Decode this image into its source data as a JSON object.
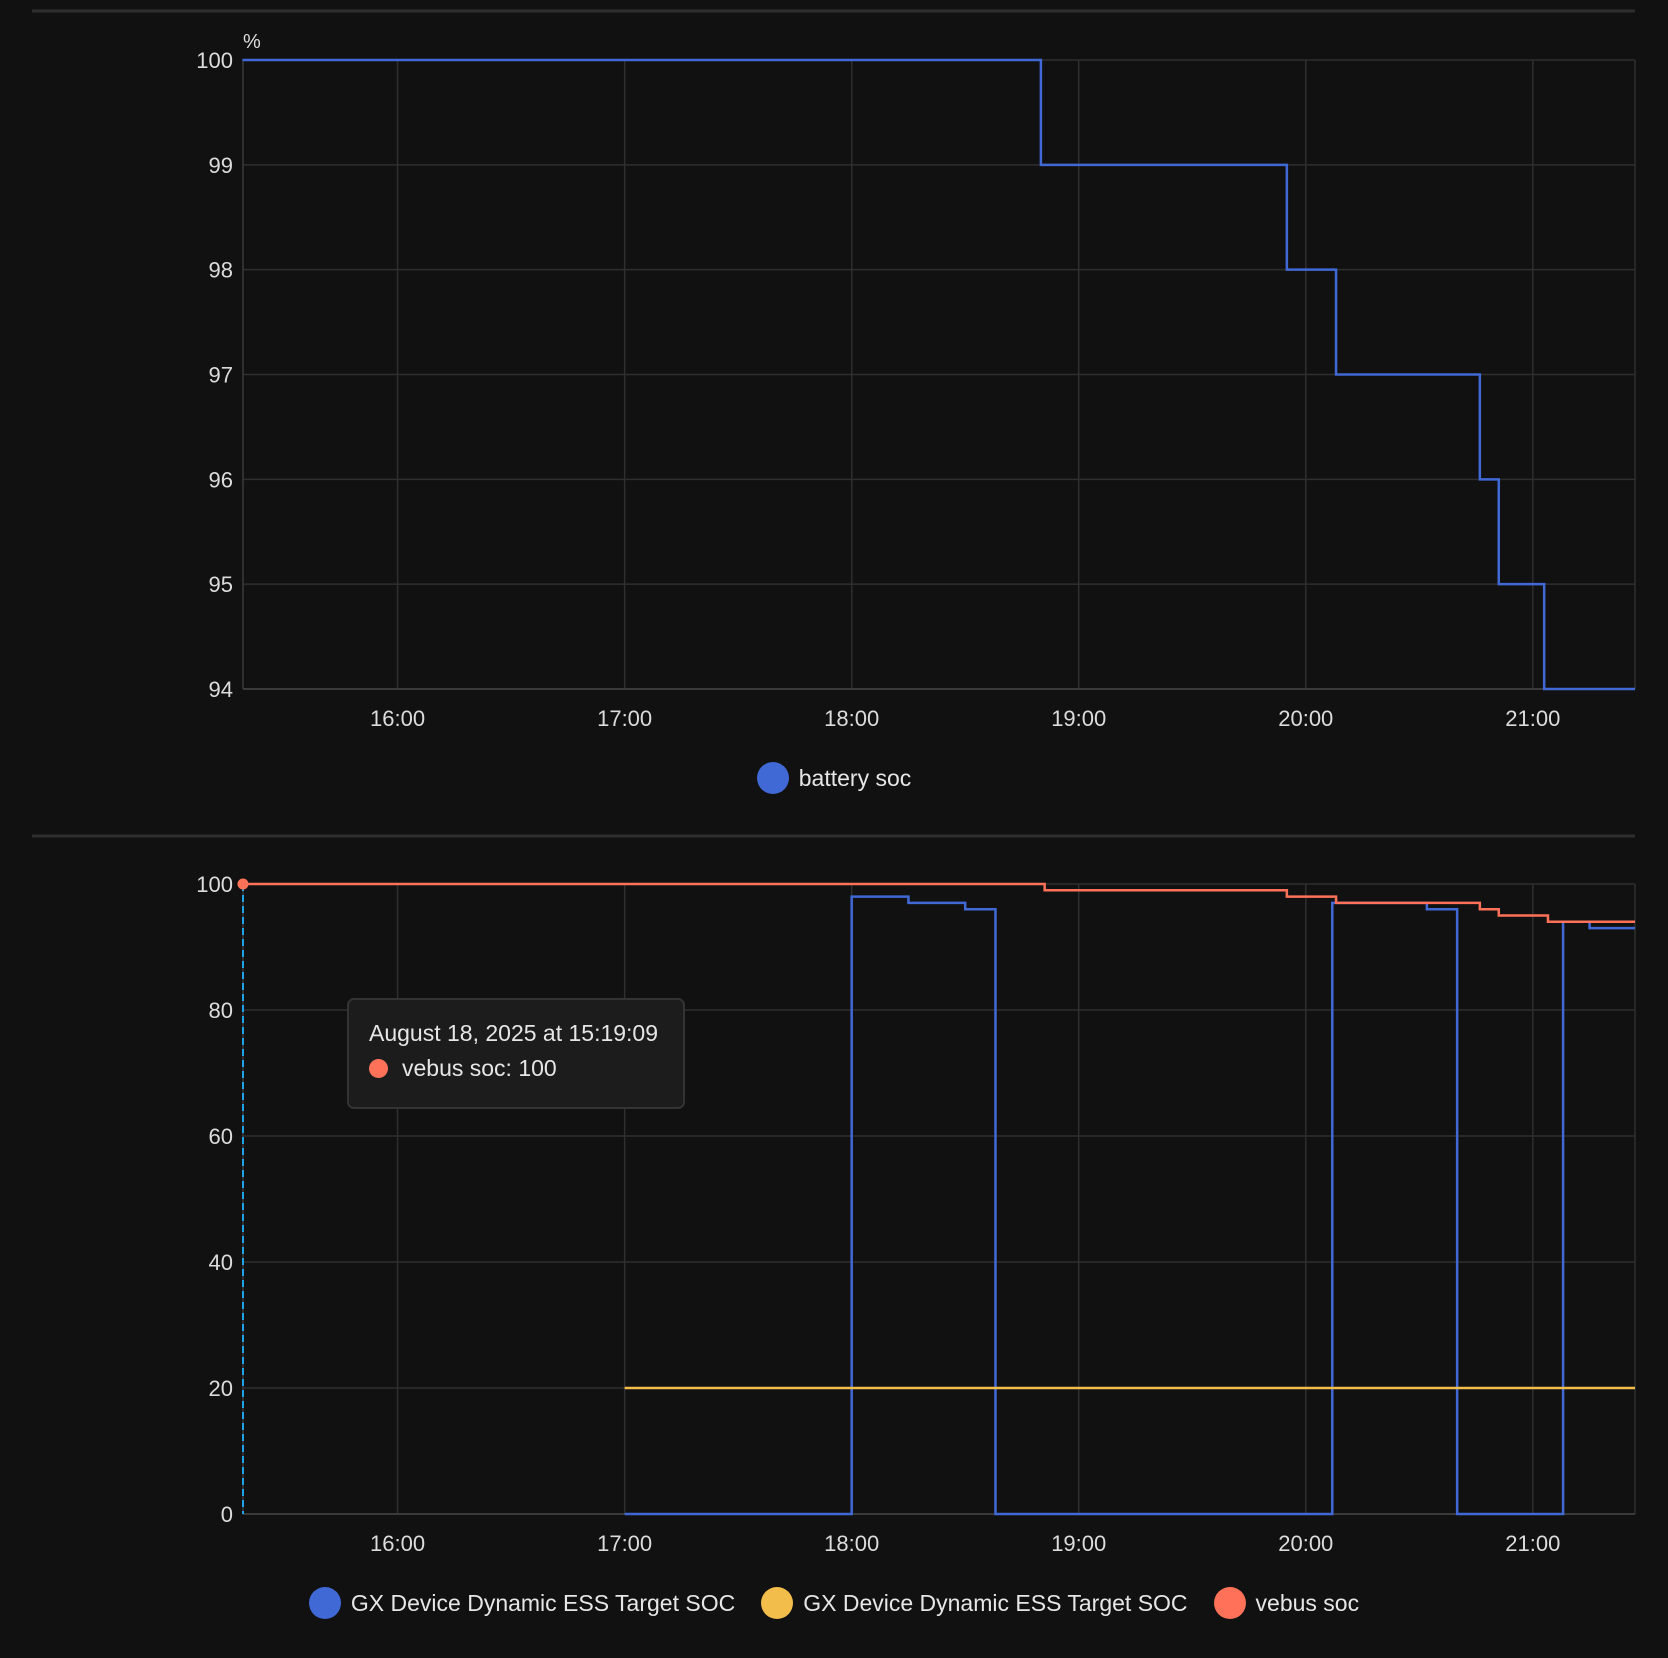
{
  "chart_data": [
    {
      "type": "line",
      "title": "",
      "ylabel": "%",
      "xlabel": "",
      "xlim": [
        "15:19:09",
        "21:27"
      ],
      "ylim": [
        94,
        100
      ],
      "yticks": [
        "94",
        "95",
        "96",
        "97",
        "98",
        "99",
        "100"
      ],
      "xticks": [
        "16:00",
        "17:00",
        "18:00",
        "19:00",
        "20:00",
        "21:00"
      ],
      "grid": true,
      "legend_position": "bottom-center",
      "series": [
        {
          "name": "battery soc",
          "color": "#4169d6",
          "step": true,
          "points": [
            [
              "15:19",
              100
            ],
            [
              "18:50",
              99
            ],
            [
              "19:55",
              98
            ],
            [
              "20:08",
              97
            ],
            [
              "20:46",
              96
            ],
            [
              "20:51",
              95
            ],
            [
              "21:03",
              94
            ],
            [
              "21:27",
              94
            ]
          ]
        }
      ]
    },
    {
      "type": "line",
      "title": "",
      "xlabel": "",
      "ylabel": "",
      "xlim": [
        "15:19:09",
        "21:27"
      ],
      "ylim": [
        0,
        100
      ],
      "yticks": [
        "0",
        "20",
        "40",
        "60",
        "80",
        "100"
      ],
      "xticks": [
        "16:00",
        "17:00",
        "18:00",
        "19:00",
        "20:00",
        "21:00"
      ],
      "grid": true,
      "legend_position": "bottom-center",
      "series": [
        {
          "name": "GX Device Dynamic ESS Target SOC",
          "color": "#4169d6",
          "step": true,
          "points": [
            [
              "17:00",
              0
            ],
            [
              "18:00",
              98
            ],
            [
              "18:15",
              97
            ],
            [
              "18:30",
              96
            ],
            [
              "18:38",
              0
            ],
            [
              "20:07",
              97
            ],
            [
              "20:32",
              96
            ],
            [
              "20:40",
              0
            ],
            [
              "21:08",
              94
            ],
            [
              "21:15",
              93
            ],
            [
              "21:27",
              93
            ]
          ]
        },
        {
          "name": "GX Device Dynamic ESS Target SOC",
          "color": "#f2bd4b",
          "step": true,
          "points": [
            [
              "17:00",
              20
            ],
            [
              "21:27",
              20
            ]
          ]
        },
        {
          "name": "vebus soc",
          "color": "#ff7259",
          "step": true,
          "points": [
            [
              "15:19",
              100
            ],
            [
              "18:51",
              99
            ],
            [
              "19:55",
              98
            ],
            [
              "20:08",
              97
            ],
            [
              "20:46",
              96
            ],
            [
              "20:51",
              95
            ],
            [
              "21:04",
              94
            ],
            [
              "21:27",
              94
            ]
          ]
        }
      ],
      "tooltip": {
        "title": "August 18, 2025 at 15:19:09",
        "series": "vebus soc",
        "value_text": "vebus soc: 100",
        "color": "#ff7259",
        "time": "15:19:09",
        "value": 100
      },
      "crosshair_color": "#1fa3e8"
    }
  ]
}
